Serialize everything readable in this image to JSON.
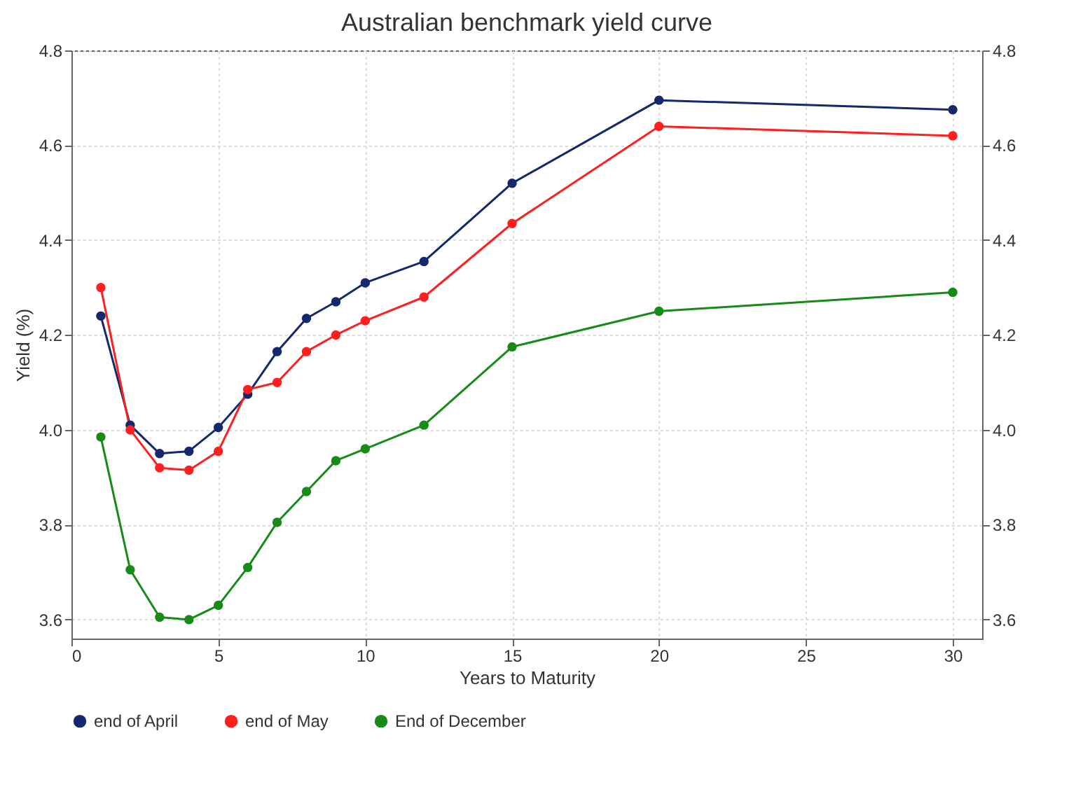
{
  "chart_data": {
    "type": "line",
    "title": "Australian benchmark yield curve",
    "xlabel": "Years to Maturity",
    "ylabel": "Yield (%)",
    "x": [
      1,
      2,
      3,
      4,
      5,
      6,
      7,
      8,
      9,
      10,
      12,
      15,
      20,
      30
    ],
    "series": [
      {
        "name": "end of April",
        "color": "#14286e",
        "values": [
          4.24,
          4.01,
          3.95,
          3.955,
          4.005,
          4.075,
          4.165,
          4.235,
          4.27,
          4.31,
          4.355,
          4.52,
          4.695,
          4.675
        ]
      },
      {
        "name": "end of May",
        "color": "#ff1f1f",
        "values": [
          4.3,
          4.0,
          3.92,
          3.915,
          3.955,
          4.085,
          4.1,
          4.165,
          4.2,
          4.23,
          4.28,
          4.435,
          4.64,
          4.62
        ]
      },
      {
        "name": "End of December",
        "color": "#178a17",
        "values": [
          3.985,
          3.705,
          3.605,
          3.6,
          3.63,
          3.71,
          3.805,
          3.87,
          3.935,
          3.96,
          4.01,
          4.175,
          4.25,
          4.29
        ]
      }
    ],
    "xlim": [
      0,
      31
    ],
    "xticks": [
      0,
      5,
      10,
      15,
      20,
      25,
      30
    ],
    "ylim": [
      3.56,
      4.8
    ],
    "yticks": [
      {
        "value": 3.6,
        "label": "3.6"
      },
      {
        "value": 3.8,
        "label": "3.8"
      },
      {
        "value": 4,
        "label": "4.0"
      },
      {
        "value": 4.2,
        "label": "4.2"
      },
      {
        "value": 4.4,
        "label": "4.4"
      },
      {
        "value": 4.6,
        "label": "4.6"
      },
      {
        "value": 4.8,
        "label": "4.8"
      }
    ],
    "y2lim": [
      3.56,
      4.8
    ],
    "y2ticks": [
      {
        "value": 3.6,
        "label": "3.6"
      },
      {
        "value": 3.8,
        "label": "3.8"
      },
      {
        "value": 4,
        "label": "4.0"
      },
      {
        "value": 4.2,
        "label": "4.2"
      },
      {
        "value": 4.4,
        "label": "4.4"
      },
      {
        "value": 4.6,
        "label": "4.6"
      },
      {
        "value": 4.8,
        "label": "4.8"
      }
    ],
    "grid": true,
    "legend": "bottom left",
    "marker": "circle",
    "line_style": "solid"
  }
}
